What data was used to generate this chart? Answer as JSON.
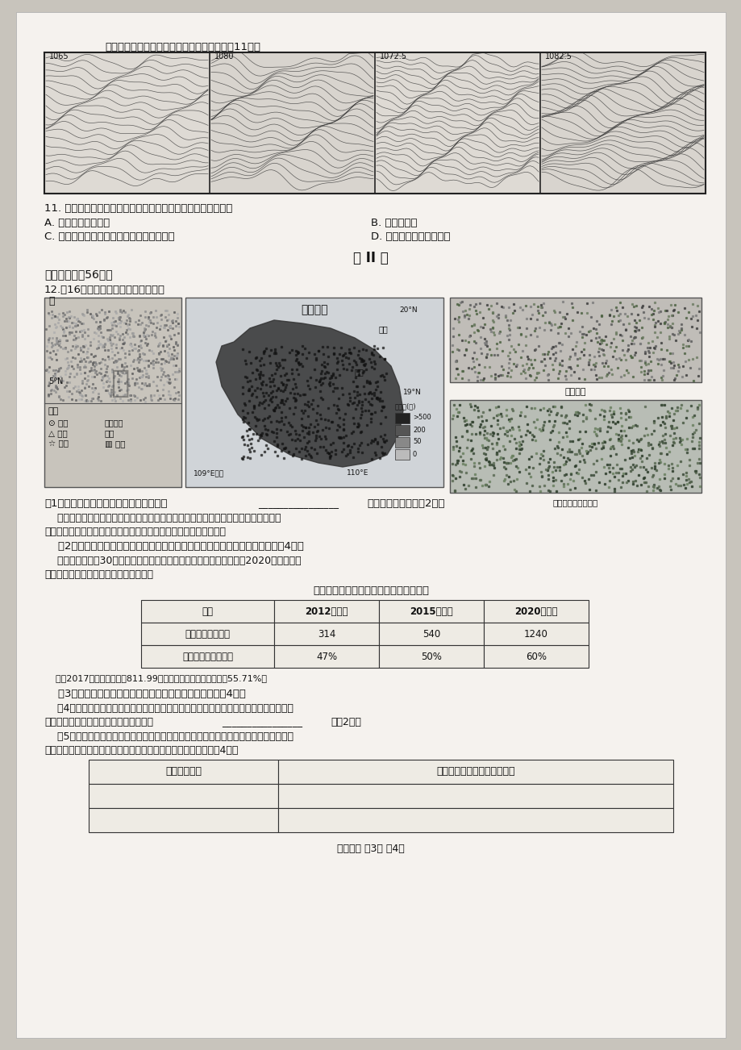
{
  "page_bg": "#f5f2ee",
  "outer_bg": "#c8c4bc",
  "content": {
    "header_text": "读亚洲部分地区海平面等压线分布图，回答第11题。",
    "q11_text": "11. 图中四幅天气图反映了一次寒潮的天气过程。图示冷锋活动",
    "q11_optA": "A. 影响我国所有地区",
    "q11_optB": "B. 出现在秋季",
    "q11_optC": "C. 使图中四城市出现大风、降温等气候状况",
    "q11_optD": "D. 大致自北向南不断移动",
    "part2_title": "第 II 卷",
    "part2_sub": "二、综合题（56分）",
    "q12_head": "12.（16分）读图文材料，回答问题。",
    "map_title": "海南岛图",
    "map_label_east": "东",
    "map_label_5N": "5°N",
    "map_label_20N": "20°N",
    "map_label_haiko": "海口",
    "map_label_zhuhai": "珠海",
    "map_label_19N": "19°N",
    "map_label_109E": "109°E三亚",
    "map_label_110E": "110°E",
    "map_legend_title": "图例",
    "map_legend_city": "城市",
    "map_legend_ridge": "山脉",
    "map_legend_water": "水稻",
    "map_legend_tropical": "热带稀树",
    "map_legend_grass": "草原",
    "map_legend_highland": "高地",
    "altitude_title": "高度表(米)",
    "altitude_vals": [
      ">500",
      "200",
      "50",
      "0"
    ],
    "photo1_label": "东坡书院",
    "photo2_label": "东寨港红树林保护区",
    "q1_text": "（1）该岛西部的热带稀树草原景观反映了",
    "q1_blank": "________________",
    "q1_suffix": "地域分异的现象。（2分）",
    "q1_para2": "    我国三亚的国家南繁科研育种基地，在水稻有种技术上彰显了世界科技发展的中国贡",
    "q1_para2b": "献，每年吸引多批次东南亚水稻专家和学员前来考察学习农业技术。",
    "q2_text": "    （2）据图文材料，说明到南繁育种基地学习的人员主要来自东南亚的原因。（4分）",
    "q2_para": "    以建立经济特区30周年为契机，作为国家的重大战略部署，我国将在2020年将海南初",
    "q2_para2": "步建成世界一流海岛休闲度假旅游胜地。",
    "table_title": "海南国际旅游岛相关发展目标部分汇总表",
    "table_headers": [
      "项目",
      "2012年目标",
      "2015年目标",
      "2020年目标"
    ],
    "table_row1": [
      "旅游收入（亿元）",
      "314",
      "540",
      "1240"
    ],
    "table_row2": [
      "第三产业增加值比重",
      "47%",
      "50%",
      "60%"
    ],
    "table_note": "    注：2017年海南旅游收入811.99亿元，第三产业增加值占比为55.71%。",
    "q3_text": "    （3）比较上述相关数据，说明海南旅游业发展的特点。（4分）",
    "q4_text": "    （4）海南在今年春节期间的大雾，导致大量出岛车辆、旅客滞留。据上述材料可知，制",
    "q4_text2": "约海南旅游资源进一步开发的不利条件是",
    "q4_blank": "________________",
    "q4_suffix": "。（2分）",
    "q5_text": "    （5）该岛旅游价值较高。旅游资源的功能是与价值相对应的。据下列表格要求，提取图",
    "q5_text2": "文信息，说明该岛旅游资源的价值及相应的功能。请填表回答。（4分）",
    "table2_col1": "图文相关信息",
    "table2_col2": "旅游资源的价值及相应的功能",
    "footer": "高三地理 第3页 共4页"
  }
}
